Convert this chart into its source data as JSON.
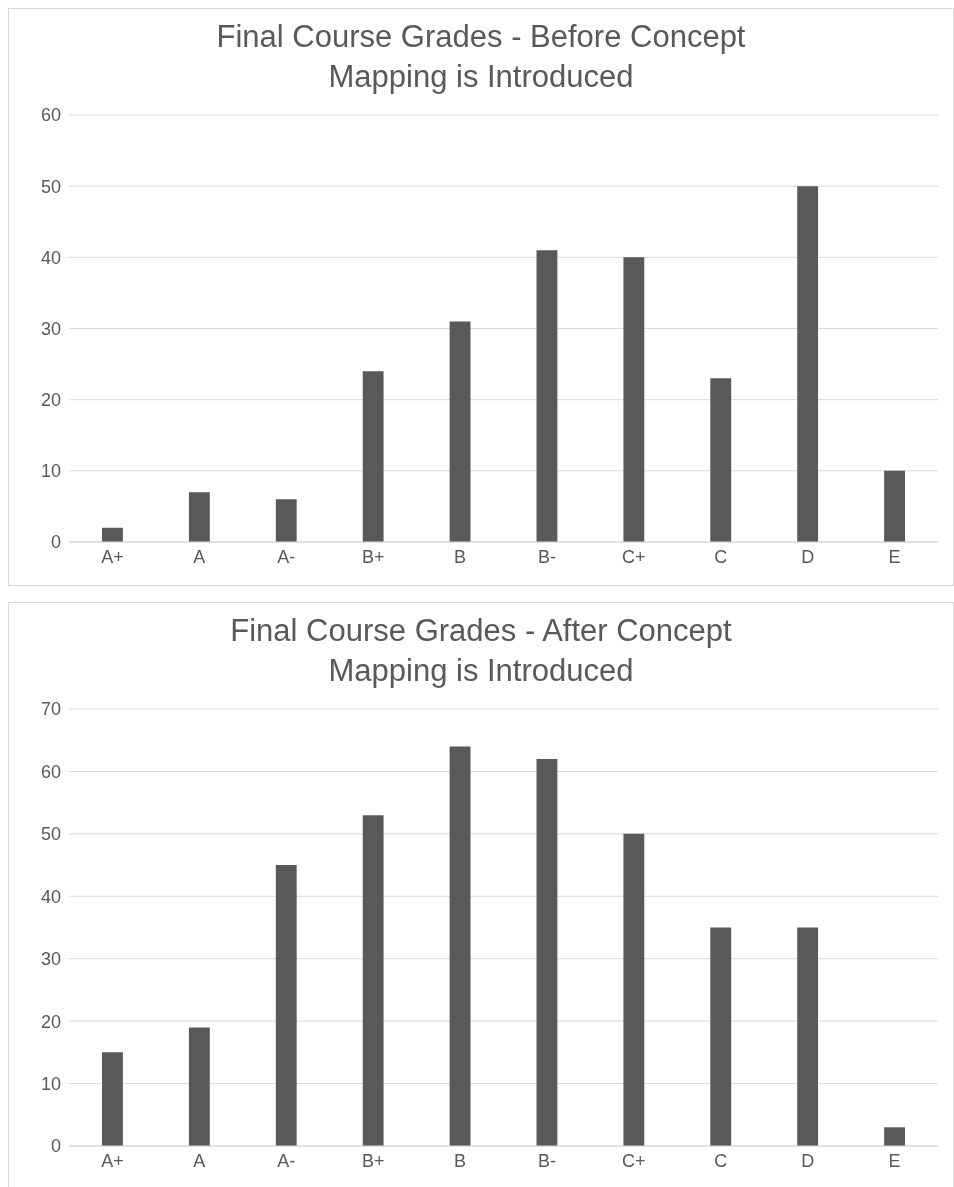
{
  "chart_data": [
    {
      "type": "bar",
      "title": "Final Course Grades - Before Concept Mapping is Introduced",
      "categories": [
        "A+",
        "A",
        "A-",
        "B+",
        "B",
        "B-",
        "C+",
        "C",
        "D",
        "E"
      ],
      "values": [
        2,
        7,
        6,
        24,
        31,
        41,
        40,
        23,
        50,
        10
      ],
      "color": "#595959",
      "ylim": [
        0,
        60
      ],
      "yticks": [
        0,
        10,
        20,
        30,
        40,
        50,
        60
      ],
      "grid": "y"
    },
    {
      "type": "bar",
      "title": "Final Course Grades - After Concept Mapping is Introduced",
      "categories": [
        "A+",
        "A",
        "A-",
        "B+",
        "B",
        "B-",
        "C+",
        "C",
        "D",
        "E"
      ],
      "values": [
        15,
        19,
        45,
        53,
        64,
        62,
        50,
        35,
        35,
        3
      ],
      "color": "#595959",
      "ylim": [
        0,
        70
      ],
      "yticks": [
        0,
        10,
        20,
        30,
        40,
        50,
        60,
        70
      ],
      "grid": "y"
    }
  ]
}
